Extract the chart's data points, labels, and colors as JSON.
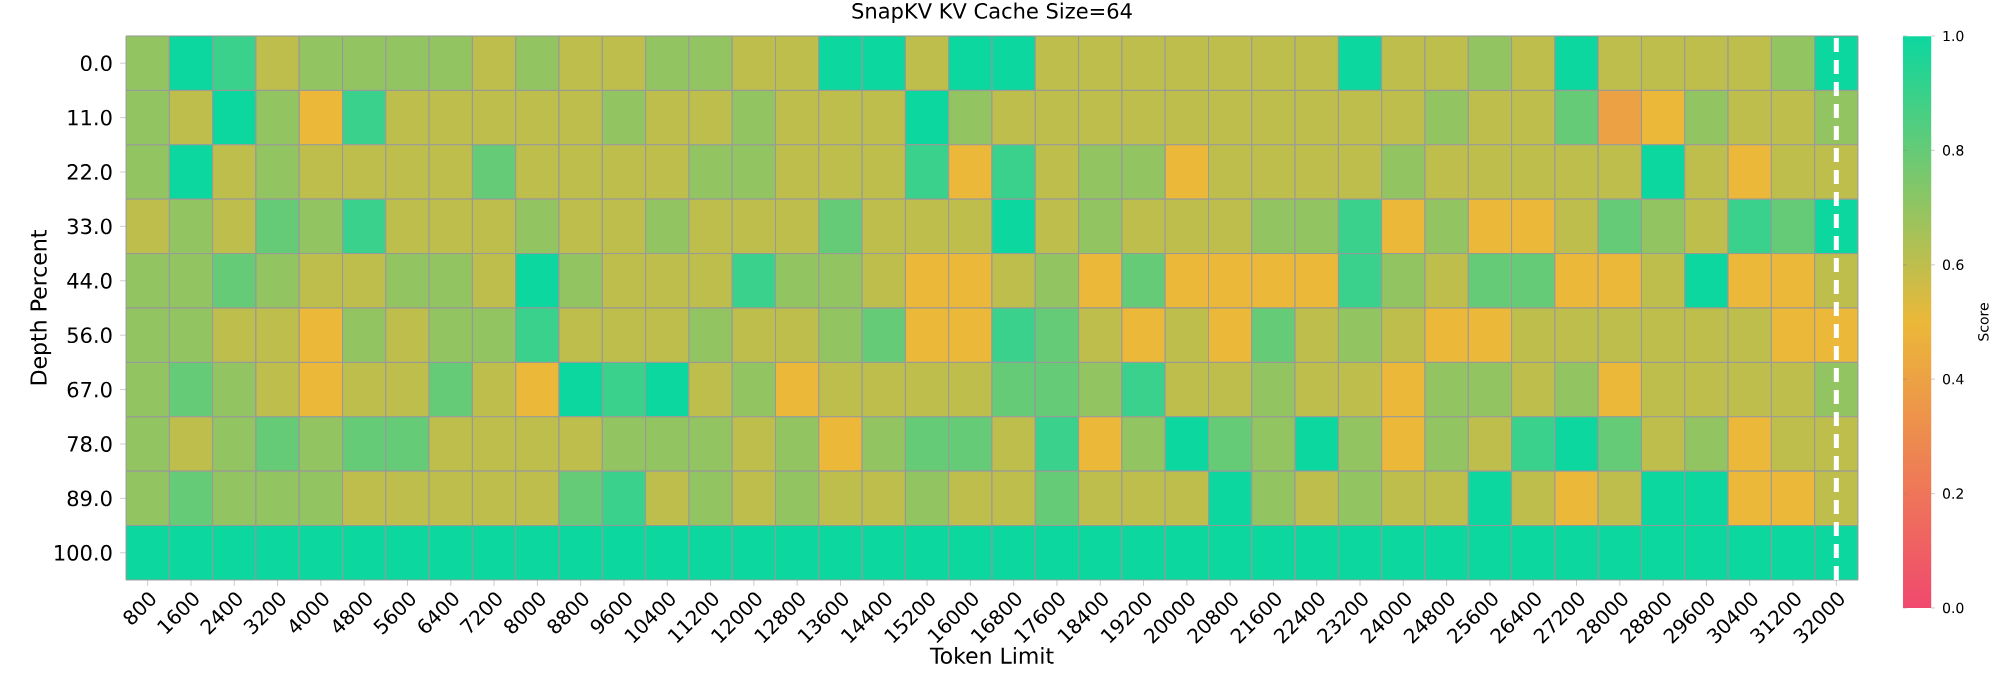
{
  "chart_data": {
    "type": "heatmap",
    "title": "SnapKV    KV Cache Size=64",
    "xlabel": "Token Limit",
    "ylabel": "Depth Percent",
    "clabel": "Score",
    "categories": [
      "800",
      "1600",
      "2400",
      "3200",
      "4000",
      "4800",
      "5600",
      "6400",
      "7200",
      "8000",
      "8800",
      "9600",
      "10400",
      "11200",
      "12000",
      "12800",
      "13600",
      "14400",
      "15200",
      "16000",
      "16800",
      "17600",
      "18400",
      "19200",
      "20000",
      "20800",
      "21600",
      "22400",
      "23200",
      "24000",
      "24800",
      "25600",
      "26400",
      "27200",
      "28000",
      "28800",
      "29600",
      "30400",
      "31200",
      "32000"
    ],
    "y_categories": [
      "0.0",
      "11.0",
      "22.0",
      "33.0",
      "44.0",
      "56.0",
      "67.0",
      "78.0",
      "89.0",
      "100.0"
    ],
    "cells": [
      [
        0.7,
        1.0,
        0.9,
        0.6,
        0.7,
        0.7,
        0.7,
        0.7,
        0.6,
        0.7,
        0.6,
        0.6,
        0.7,
        0.7,
        0.6,
        0.6,
        1.0,
        1.0,
        0.6,
        1.0,
        1.0,
        0.6,
        0.6,
        0.6,
        0.6,
        0.6,
        0.6,
        0.6,
        1.0,
        0.6,
        0.6,
        0.7,
        0.6,
        1.0,
        0.6,
        0.6,
        0.6,
        0.6,
        0.7,
        1.0
      ],
      [
        0.7,
        0.6,
        1.0,
        0.7,
        0.5,
        0.9,
        0.6,
        0.6,
        0.6,
        0.6,
        0.6,
        0.7,
        0.6,
        0.6,
        0.7,
        0.6,
        0.6,
        0.6,
        1.0,
        0.7,
        0.6,
        0.6,
        0.6,
        0.6,
        0.6,
        0.6,
        0.6,
        0.6,
        0.6,
        0.6,
        0.7,
        0.6,
        0.6,
        0.8,
        0.4,
        0.5,
        0.7,
        0.6,
        0.6,
        0.7
      ],
      [
        0.7,
        1.0,
        0.6,
        0.7,
        0.6,
        0.6,
        0.6,
        0.6,
        0.8,
        0.6,
        0.6,
        0.6,
        0.6,
        0.7,
        0.7,
        0.6,
        0.6,
        0.6,
        0.9,
        0.5,
        0.9,
        0.6,
        0.7,
        0.7,
        0.5,
        0.6,
        0.6,
        0.6,
        0.6,
        0.7,
        0.6,
        0.6,
        0.6,
        0.6,
        0.6,
        1.0,
        0.6,
        0.5,
        0.6,
        0.6
      ],
      [
        0.6,
        0.7,
        0.6,
        0.8,
        0.7,
        0.9,
        0.6,
        0.6,
        0.6,
        0.7,
        0.6,
        0.6,
        0.7,
        0.6,
        0.6,
        0.6,
        0.8,
        0.6,
        0.6,
        0.6,
        1.0,
        0.6,
        0.7,
        0.6,
        0.6,
        0.6,
        0.7,
        0.7,
        0.9,
        0.5,
        0.7,
        0.5,
        0.5,
        0.6,
        0.8,
        0.7,
        0.6,
        0.9,
        0.8,
        1.0
      ],
      [
        0.7,
        0.7,
        0.8,
        0.7,
        0.6,
        0.6,
        0.7,
        0.7,
        0.6,
        1.0,
        0.7,
        0.6,
        0.6,
        0.6,
        0.9,
        0.7,
        0.7,
        0.6,
        0.5,
        0.5,
        0.6,
        0.7,
        0.5,
        0.8,
        0.5,
        0.5,
        0.5,
        0.5,
        0.9,
        0.7,
        0.6,
        0.8,
        0.8,
        0.5,
        0.5,
        0.6,
        1.0,
        0.5,
        0.5,
        0.6
      ],
      [
        0.7,
        0.7,
        0.6,
        0.6,
        0.5,
        0.7,
        0.6,
        0.7,
        0.7,
        0.9,
        0.6,
        0.6,
        0.6,
        0.7,
        0.6,
        0.6,
        0.7,
        0.8,
        0.5,
        0.5,
        0.9,
        0.8,
        0.6,
        0.5,
        0.6,
        0.5,
        0.8,
        0.6,
        0.7,
        0.6,
        0.5,
        0.5,
        0.6,
        0.6,
        0.6,
        0.6,
        0.6,
        0.6,
        0.5,
        0.5
      ],
      [
        0.7,
        0.8,
        0.7,
        0.6,
        0.5,
        0.6,
        0.6,
        0.8,
        0.6,
        0.5,
        1.0,
        0.9,
        1.0,
        0.6,
        0.7,
        0.5,
        0.6,
        0.6,
        0.6,
        0.6,
        0.8,
        0.8,
        0.7,
        0.9,
        0.6,
        0.6,
        0.7,
        0.6,
        0.6,
        0.5,
        0.7,
        0.7,
        0.6,
        0.7,
        0.5,
        0.6,
        0.6,
        0.6,
        0.6,
        0.7
      ],
      [
        0.7,
        0.6,
        0.7,
        0.8,
        0.7,
        0.8,
        0.8,
        0.6,
        0.6,
        0.6,
        0.6,
        0.7,
        0.7,
        0.7,
        0.6,
        0.7,
        0.5,
        0.7,
        0.8,
        0.8,
        0.6,
        0.9,
        0.5,
        0.7,
        1.0,
        0.8,
        0.7,
        1.0,
        0.7,
        0.5,
        0.7,
        0.6,
        0.9,
        1.0,
        0.8,
        0.6,
        0.7,
        0.5,
        0.6,
        0.6
      ],
      [
        0.7,
        0.8,
        0.7,
        0.7,
        0.7,
        0.6,
        0.6,
        0.6,
        0.6,
        0.6,
        0.8,
        0.9,
        0.6,
        0.7,
        0.6,
        0.7,
        0.6,
        0.6,
        0.7,
        0.6,
        0.6,
        0.8,
        0.6,
        0.6,
        0.6,
        1.0,
        0.7,
        0.6,
        0.7,
        0.6,
        0.6,
        1.0,
        0.6,
        0.5,
        0.6,
        1.0,
        1.0,
        0.5,
        0.5,
        0.6
      ],
      [
        1.0,
        1.0,
        1.0,
        1.0,
        1.0,
        1.0,
        1.0,
        1.0,
        1.0,
        1.0,
        1.0,
        1.0,
        1.0,
        1.0,
        1.0,
        1.0,
        1.0,
        1.0,
        1.0,
        1.0,
        1.0,
        1.0,
        1.0,
        1.0,
        1.0,
        1.0,
        1.0,
        1.0,
        1.0,
        1.0,
        1.0,
        1.0,
        1.0,
        1.0,
        1.0,
        1.0,
        1.0,
        1.0,
        1.0,
        1.0
      ]
    ],
    "clim": [
      0,
      1
    ],
    "cticks": [
      {
        "value": 0,
        "label": "0.0"
      },
      {
        "value": 0.2,
        "label": "0.2"
      },
      {
        "value": 0.4,
        "label": "0.4"
      },
      {
        "value": 0.6,
        "label": "0.6"
      },
      {
        "value": 0.8,
        "label": "0.8"
      },
      {
        "value": 1,
        "label": "1.0"
      }
    ],
    "ref_lines": [
      {
        "axis": "x",
        "value": "32000",
        "color": "#ffffff",
        "line_style": "dashed"
      }
    ]
  }
}
